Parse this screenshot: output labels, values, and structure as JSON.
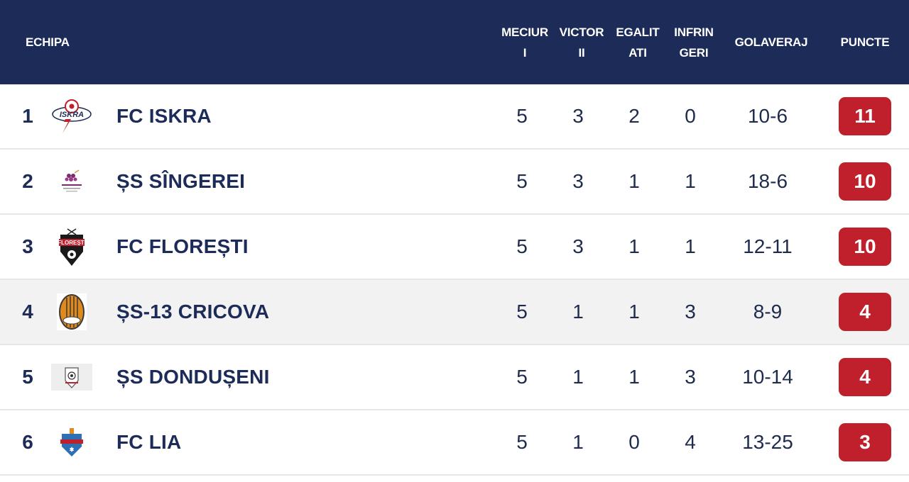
{
  "header": {
    "team": "ECHIPA",
    "played": "MECIUR\nI",
    "wins": "VICTOR\nII",
    "draws": "EGALIT\nATI",
    "losses": "INFRIN\nGERI",
    "goals": "GOLAVERAJ",
    "points": "PUNCTE"
  },
  "colors": {
    "header_bg": "#1c2b57",
    "points_badge": "#c0202b",
    "row_alt": "#f2f2f3"
  },
  "rows": [
    {
      "pos": "1",
      "name": "FC ISKRA",
      "logo_icon": "iskra-crest-icon",
      "logo_text": "ISKRA",
      "played": "5",
      "wins": "3",
      "draws": "2",
      "losses": "0",
      "goals": "10-6",
      "points": "11"
    },
    {
      "pos": "2",
      "name": "ȘS SÎNGEREI",
      "logo_icon": "singerei-crest-icon",
      "played": "5",
      "wins": "3",
      "draws": "1",
      "losses": "1",
      "goals": "18-6",
      "points": "10"
    },
    {
      "pos": "3",
      "name": "FC FLOREȘTI",
      "logo_icon": "floresti-crest-icon",
      "logo_text": "FLOREȘTI",
      "played": "5",
      "wins": "3",
      "draws": "1",
      "losses": "1",
      "goals": "12-11",
      "points": "10"
    },
    {
      "pos": "4",
      "name": "ȘS-13 CRICOVA",
      "logo_icon": "cricova-crest-icon",
      "played": "5",
      "wins": "1",
      "draws": "1",
      "losses": "3",
      "goals": "8-9",
      "points": "4"
    },
    {
      "pos": "5",
      "name": "ȘS DONDUȘENI",
      "logo_icon": "donduseni-crest-icon",
      "played": "5",
      "wins": "1",
      "draws": "1",
      "losses": "3",
      "goals": "10-14",
      "points": "4"
    },
    {
      "pos": "6",
      "name": "FC LIA",
      "logo_icon": "lia-crest-icon",
      "played": "5",
      "wins": "1",
      "draws": "0",
      "losses": "4",
      "goals": "13-25",
      "points": "3"
    }
  ]
}
